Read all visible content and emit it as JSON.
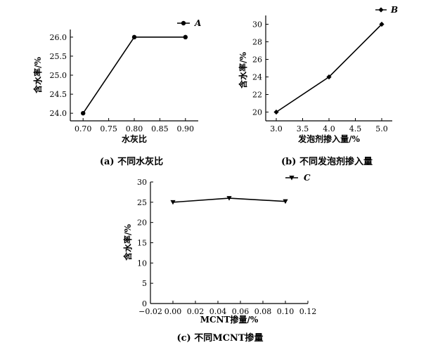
{
  "chart_data": [
    {
      "type": "line",
      "caption": "(a) 不同水灰比",
      "xlabel": "水灰比",
      "ylabel": "含水率/%",
      "xlim": [
        0.675,
        0.925
      ],
      "ylim": [
        23.8,
        26.2
      ],
      "xticks": [
        "0.70",
        "0.75",
        "0.80",
        "0.85",
        "0.90"
      ],
      "yticks": [
        "24.0",
        "24.5",
        "25.0",
        "25.5",
        "26.0"
      ],
      "series": [
        {
          "name": "A",
          "marker": "circle",
          "x": [
            0.7,
            0.8,
            0.9
          ],
          "y": [
            24.0,
            26.0,
            26.0
          ]
        }
      ],
      "legend": "top-right"
    },
    {
      "type": "line",
      "caption": "(b) 不同发泡剂掺入量",
      "xlabel": "发泡剂掺入量/%",
      "ylabel": "含水率/%",
      "xlim": [
        2.8,
        5.2
      ],
      "ylim": [
        19.0,
        31.0
      ],
      "xticks": [
        "3.0",
        "3.5",
        "4.0",
        "4.5",
        "5.0"
      ],
      "yticks": [
        "20",
        "22",
        "24",
        "26",
        "28",
        "30"
      ],
      "series": [
        {
          "name": "B",
          "marker": "diamond",
          "x": [
            3.0,
            4.0,
            5.0
          ],
          "y": [
            20,
            24,
            30
          ]
        }
      ],
      "legend": "top-right"
    },
    {
      "type": "line",
      "caption": "(c) 不同MCNT掺量",
      "xlabel": "MCNT掺量/%",
      "ylabel": "含水率/%",
      "xlim": [
        -0.02,
        0.12
      ],
      "ylim": [
        0,
        30
      ],
      "xticks": [
        "−0.02",
        "0.00",
        "0.02",
        "0.04",
        "0.06",
        "0.08",
        "0.10",
        "0.12"
      ],
      "yticks": [
        "0",
        "5",
        "10",
        "15",
        "20",
        "25",
        "30"
      ],
      "series": [
        {
          "name": "C",
          "marker": "triangle-down",
          "x": [
            0.0,
            0.05,
            0.1
          ],
          "y": [
            25.0,
            26.0,
            25.2
          ]
        }
      ],
      "legend": "top-right"
    }
  ]
}
